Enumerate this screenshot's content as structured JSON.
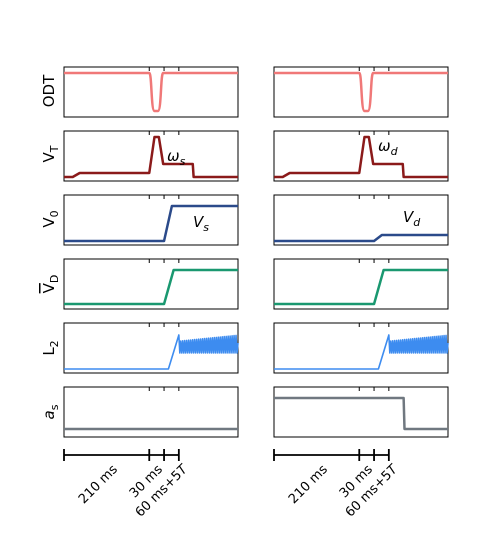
{
  "rows": [
    {
      "label": "ODT",
      "left_annotation": "",
      "right_annotation": ""
    },
    {
      "label": "V_T",
      "left_annotation": "ω_s",
      "right_annotation": "ω_d"
    },
    {
      "label": "V_0",
      "left_annotation": "V_s",
      "right_annotation": "V_d"
    },
    {
      "label": "V̄_D",
      "left_annotation": "",
      "right_annotation": ""
    },
    {
      "label": "L_2",
      "left_annotation": "",
      "right_annotation": ""
    },
    {
      "label": "a_s",
      "left_annotation": "",
      "right_annotation": ""
    }
  ],
  "timeline": {
    "segments": [
      "210 ms",
      "30 ms",
      "60 ms+5T"
    ]
  },
  "colors": {
    "odt": "#f07878",
    "vt": "#8b1a1a",
    "v0": "#2b4a8a",
    "vd": "#1a9870",
    "l2": "#3d8cf0",
    "as": "#707880"
  }
}
